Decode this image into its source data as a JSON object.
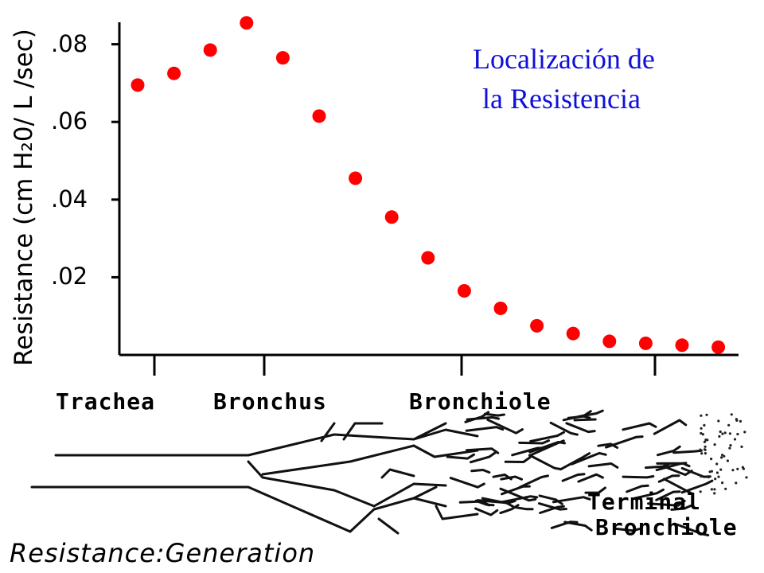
{
  "chart_data": {
    "type": "scatter",
    "title": [
      "Localización de",
      "la Resistencia"
    ],
    "ylabel": "Resistance  (cm H₂0/ L /sec)",
    "yticks": [
      ".02",
      ".04",
      ".06",
      ".08"
    ],
    "ytick_values": [
      0.02,
      0.04,
      0.06,
      0.08
    ],
    "ylim": [
      0.0,
      0.09
    ],
    "xlim": [
      0,
      17
    ],
    "x": [
      1,
      2,
      3,
      4,
      5,
      6,
      7,
      8,
      9,
      10,
      11,
      12,
      13,
      14,
      15,
      16,
      17
    ],
    "values": [
      0.0695,
      0.0725,
      0.0785,
      0.0855,
      0.0765,
      0.0615,
      0.0455,
      0.0355,
      0.025,
      0.0165,
      0.012,
      0.0075,
      0.0055,
      0.0035,
      0.003,
      0.0025,
      0.002
    ],
    "marker_color": "#ff0000",
    "grid": false,
    "regions": [
      "Trachea",
      "Bronchus",
      "Bronchiole"
    ],
    "terminal_label": [
      "Terminal",
      "Bronchiole"
    ],
    "caption": "Resistance:Generation"
  }
}
